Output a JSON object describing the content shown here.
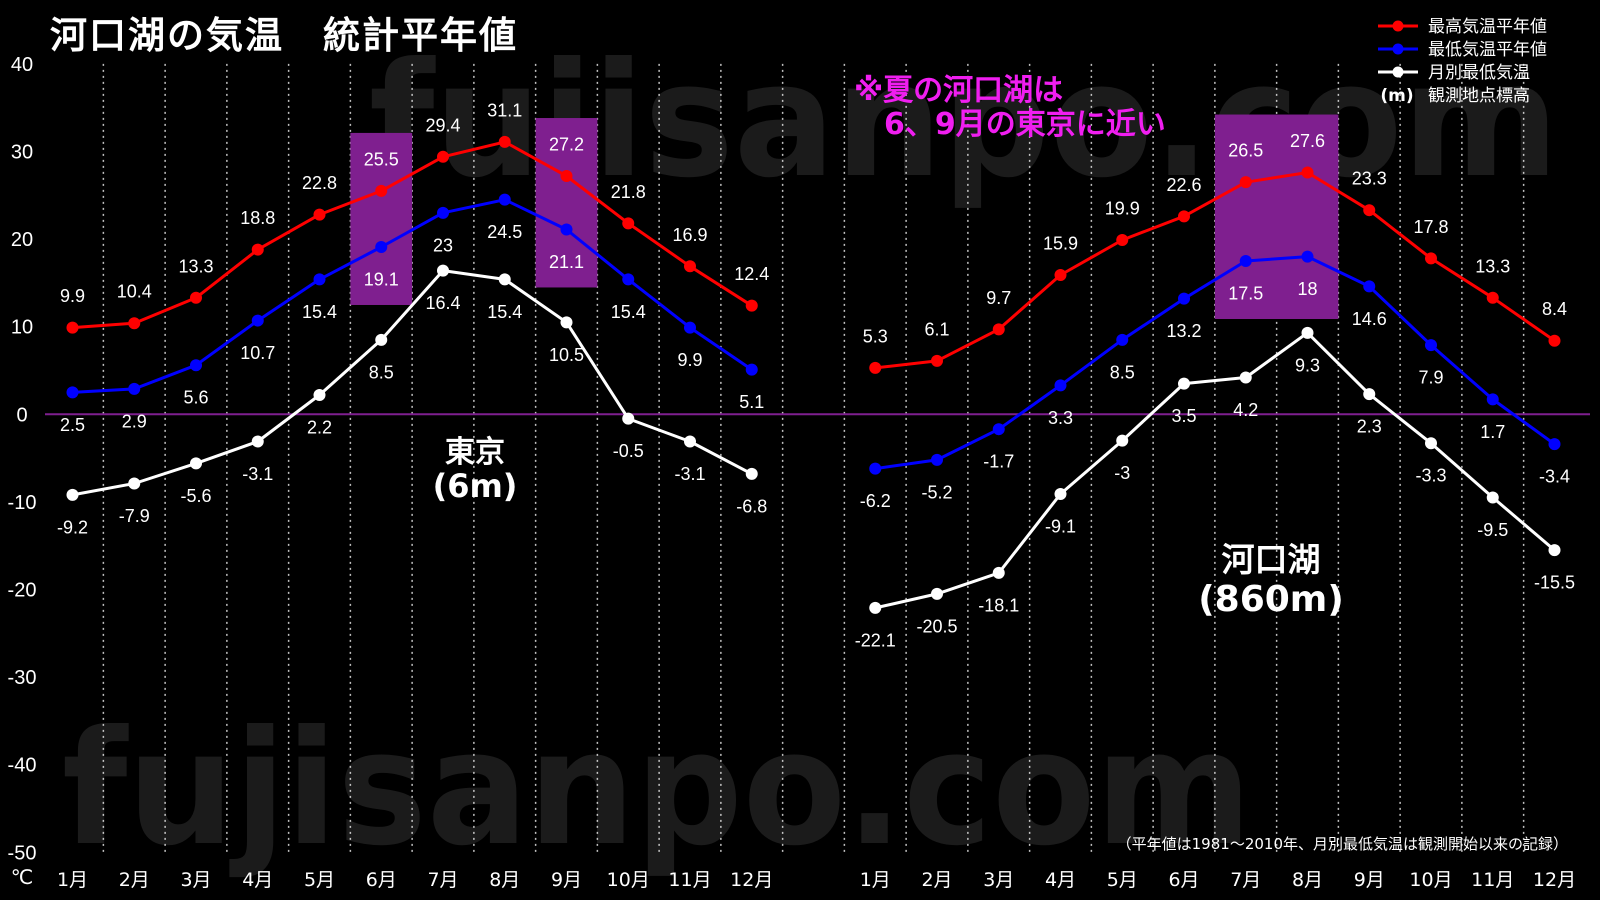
{
  "watermark": "fujisanpo.com",
  "annotation": {
    "line1": "※夏の河口湖は",
    "line2": "6、9月の東京に近い"
  },
  "footnote": "（平年値は1981～2010年、月別最低気温は観測開始以来の記録）",
  "colors": {
    "background": "#000000",
    "text": "#ffffff",
    "highlight": "#7f1f8f",
    "zero_line": "#7f1f8f",
    "annotation": "#f01ef0",
    "watermark": "#1b1b1b"
  },
  "chart_data": {
    "type": "line",
    "title": "河口湖の気温　統計平年値",
    "y_unit": "℃",
    "ylim": [
      -50,
      40
    ],
    "yticks": [
      40,
      30,
      20,
      10,
      0,
      -10,
      -20,
      -30,
      -40,
      -50
    ],
    "categories": [
      "1月",
      "2月",
      "3月",
      "4月",
      "5月",
      "6月",
      "7月",
      "8月",
      "9月",
      "10月",
      "11月",
      "12月"
    ],
    "series": [
      {
        "name": "最高気温平年値",
        "color": "#ff0000"
      },
      {
        "name": "最低気温平年値",
        "color": "#0000ff"
      },
      {
        "name": "月別最低気温",
        "color": "#ffffff"
      }
    ],
    "elevation_legend": {
      "marker": "(m)",
      "label": "観測地点標高"
    },
    "panels": [
      {
        "station": "東京",
        "elevation": "(6m)",
        "highlight_months": [
          6,
          9
        ],
        "values": [
          [
            9.9,
            10.4,
            13.3,
            18.8,
            22.8,
            25.5,
            29.4,
            31.1,
            27.2,
            21.8,
            16.9,
            12.4
          ],
          [
            2.5,
            2.9,
            5.6,
            10.7,
            15.4,
            19.1,
            23,
            24.5,
            21.1,
            15.4,
            9.9,
            5.1
          ],
          [
            -9.2,
            -7.9,
            -5.6,
            -3.1,
            2.2,
            8.5,
            16.4,
            15.4,
            10.5,
            -0.5,
            -3.1,
            -6.8
          ]
        ]
      },
      {
        "station": "河口湖",
        "elevation": "(860m)",
        "highlight_months": [
          7,
          8
        ],
        "values": [
          [
            5.3,
            6.1,
            9.7,
            15.9,
            19.9,
            22.6,
            26.5,
            27.6,
            23.3,
            17.8,
            13.3,
            8.4
          ],
          [
            -6.2,
            -5.2,
            -1.7,
            3.3,
            8.5,
            13.2,
            17.5,
            18,
            14.6,
            7.9,
            1.7,
            -3.4
          ],
          [
            -22.1,
            -20.5,
            -18.1,
            -9.1,
            -3,
            3.5,
            4.2,
            9.3,
            2.3,
            -3.3,
            -9.5,
            -15.5
          ]
        ]
      }
    ],
    "legend_position": "top-right",
    "grid": true,
    "reference_line": 0
  }
}
